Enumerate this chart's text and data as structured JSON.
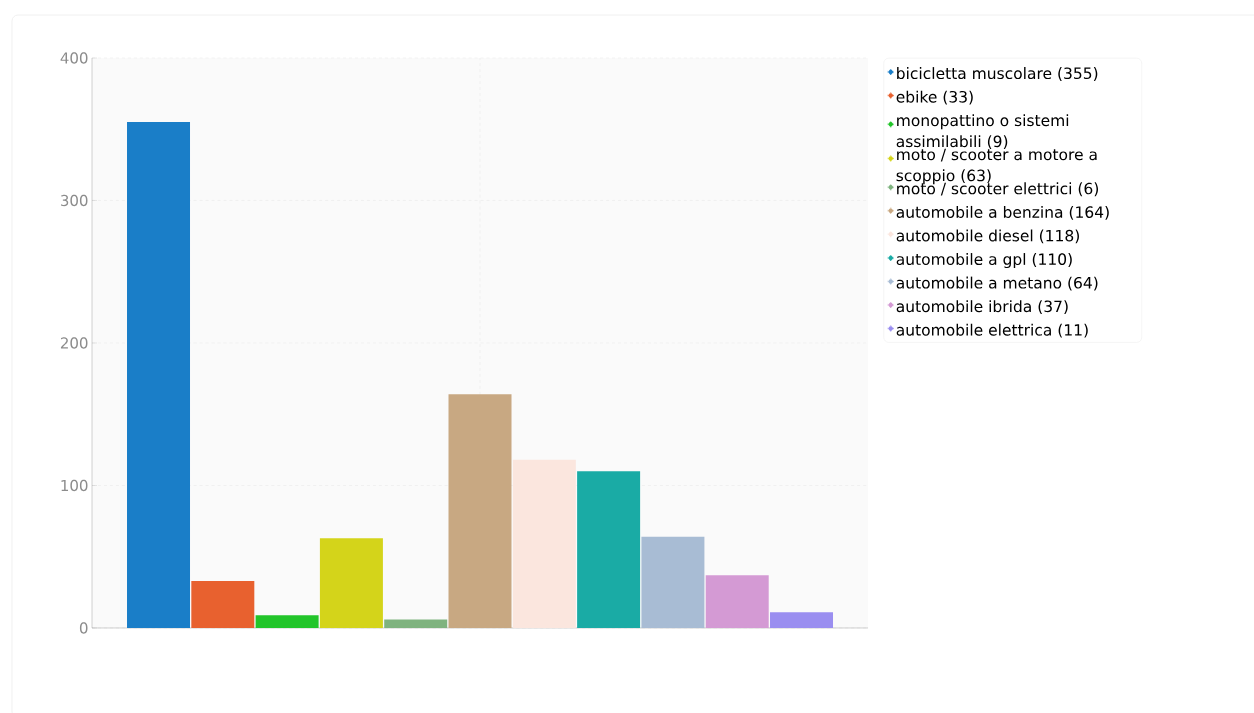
{
  "chart_data": {
    "type": "bar",
    "categories": [
      null
    ],
    "series": [
      {
        "name": "bicicletta muscolare (355)",
        "color": "#1a7ec8",
        "values": [
          355
        ]
      },
      {
        "name": "ebike (33)",
        "color": "#e8612f",
        "values": [
          33
        ]
      },
      {
        "name": "monopattino o sistemi assimilabili (9)",
        "color": "#22c52a",
        "values": [
          9
        ]
      },
      {
        "name": "moto / scooter a motore a scoppio (63)",
        "color": "#d4d41a",
        "values": [
          63
        ]
      },
      {
        "name": "moto / scooter elettrici (6)",
        "color": "#7fb37f",
        "values": [
          6
        ]
      },
      {
        "name": "automobile a benzina (164)",
        "color": "#c8a882",
        "values": [
          164
        ]
      },
      {
        "name": "automobile diesel (118)",
        "color": "#fbe6de",
        "values": [
          118
        ]
      },
      {
        "name": "automobile a gpl (110)",
        "color": "#1aaba5",
        "values": [
          110
        ]
      },
      {
        "name": "automobile a metano (64)",
        "color": "#a8bcd4",
        "values": [
          64
        ]
      },
      {
        "name": "automobile  ibrida (37)",
        "color": "#d49ad4",
        "values": [
          37
        ]
      },
      {
        "name": "automobile elettrica (11)",
        "color": "#9a8ef0",
        "values": [
          11
        ]
      }
    ],
    "ylim": [
      0,
      400
    ],
    "yticks": [
      0,
      100,
      200,
      300,
      400
    ],
    "grid": true,
    "legend": "top right",
    "tick_labels": "y"
  }
}
